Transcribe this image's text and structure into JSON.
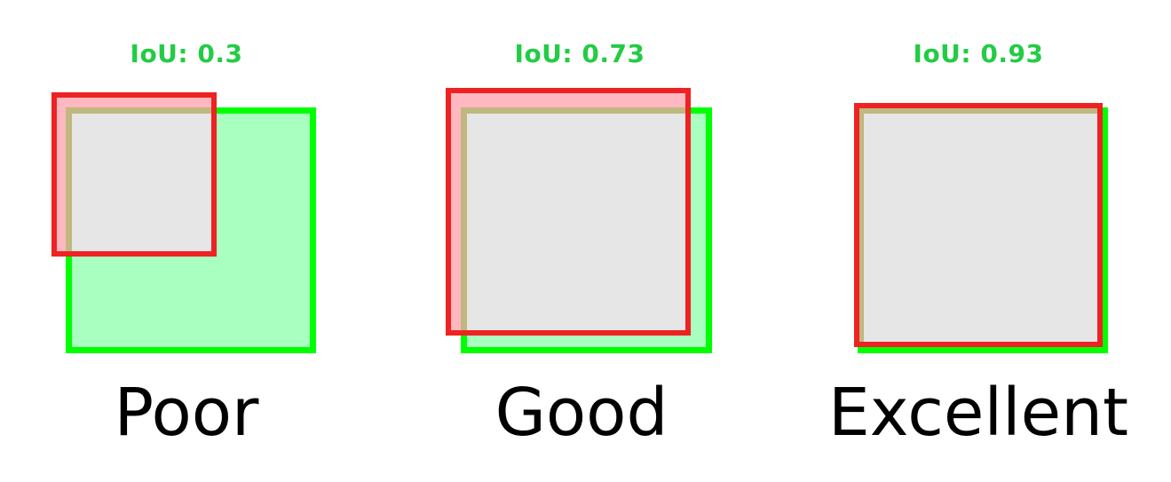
{
  "colors": {
    "ground_truth": "#00ff00",
    "prediction": "#ee2222",
    "overlap": "#e6e6e6",
    "label": "#22cc44"
  },
  "examples": [
    {
      "iou_label": "IoU: 0.3",
      "quality": "Poor"
    },
    {
      "iou_label": "IoU: 0.73",
      "quality": "Good"
    },
    {
      "iou_label": "IoU: 0.93",
      "quality": "Excellent"
    }
  ]
}
